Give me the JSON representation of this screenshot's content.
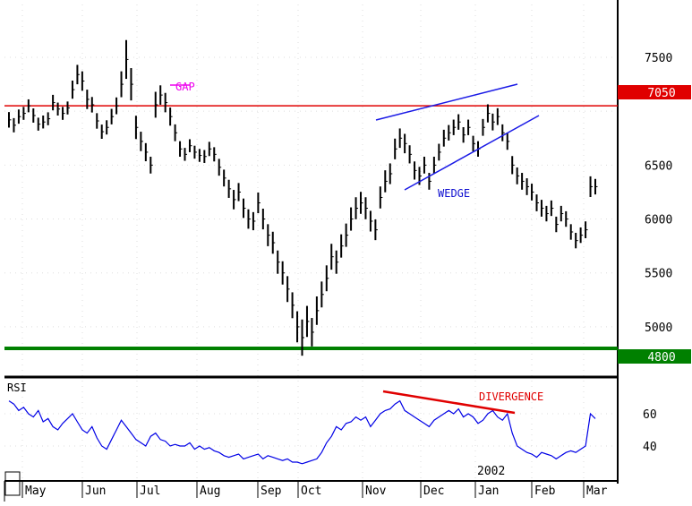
{
  "chart_data": [
    {
      "type": "line",
      "subtype": "ohlc-bar",
      "title": "",
      "xlabel": "",
      "ylabel": "",
      "ylim": [
        4750,
        7700
      ],
      "y_ticks": [
        5000,
        5500,
        6000,
        6500,
        7000,
        7500
      ],
      "y_tick_labels": [
        "5000",
        "5500",
        "6000",
        "6500",
        "7000",
        "7500"
      ],
      "grid": true,
      "x_month_labels": [
        "May",
        "Jun",
        "Jul",
        "Aug",
        "Sep",
        "Oct",
        "Nov",
        "Dec",
        "Jan",
        "Feb",
        "Mar"
      ],
      "year_label": "2002",
      "series": [
        {
          "close": [
            6920,
            6870,
            6950,
            6980,
            7050,
            6960,
            6880,
            6900,
            6930,
            7080,
            7020,
            6980,
            7030,
            7200,
            7340,
            7280,
            7110,
            7060,
            6910,
            6810,
            6850,
            6950,
            7050,
            7250,
            7480,
            7250,
            6850,
            6720,
            6620,
            6500,
            7060,
            7150,
            7080,
            6950,
            6800,
            6650,
            6600,
            6680,
            6620,
            6590,
            6580,
            6650,
            6600,
            6480,
            6380,
            6280,
            6180,
            6250,
            6100,
            6000,
            5980,
            6150,
            6000,
            5850,
            5780,
            5600,
            5500,
            5350,
            5200,
            5000,
            4900,
            5050,
            4950,
            5150,
            5300,
            5450,
            5650,
            5600,
            5750,
            5850,
            6000,
            6100,
            6150,
            6100,
            5980,
            5900,
            6200,
            6350,
            6420,
            6650,
            6750,
            6700,
            6600,
            6450,
            6400,
            6500,
            6350,
            6500,
            6620,
            6750,
            6800,
            6850,
            6900,
            6780,
            6850,
            6700,
            6650,
            6850,
            6980,
            6900,
            6950,
            6800,
            6720,
            6500,
            6400,
            6350,
            6300,
            6250,
            6150,
            6100,
            6050,
            6100,
            5950,
            6050,
            6000,
            5880,
            5800,
            5850,
            5900,
            6300,
            6300
          ],
          "range": [
            120,
            110,
            110,
            100,
            100,
            110,
            100,
            100,
            100,
            120,
            100,
            100,
            100,
            140,
            150,
            150,
            150,
            120,
            120,
            110,
            110,
            120,
            130,
            200,
            300,
            250,
            180,
            150,
            140,
            130,
            200,
            150,
            150,
            140,
            130,
            120,
            100,
            100,
            100,
            100,
            100,
            110,
            110,
            130,
            130,
            140,
            150,
            140,
            150,
            150,
            140,
            160,
            160,
            170,
            170,
            180,
            180,
            200,
            200,
            240,
            280,
            240,
            220,
            220,
            200,
            200,
            200,
            180,
            180,
            180,
            180,
            170,
            170,
            170,
            160,
            160,
            170,
            170,
            160,
            160,
            150,
            150,
            140,
            140,
            140,
            130,
            130,
            130,
            130,
            130,
            120,
            120,
            120,
            120,
            120,
            120,
            120,
            130,
            140,
            130,
            130,
            130,
            130,
            140,
            130,
            130,
            130,
            130,
            130,
            130,
            120,
            120,
            120,
            120,
            120,
            120,
            120,
            120,
            130,
            160,
            120
          ],
          "color": "#000000"
        }
      ],
      "horizontal_lines": [
        {
          "value": 7050,
          "label": "7050",
          "color": "#e00000",
          "label_bg": "#e00000"
        },
        {
          "value": 4800,
          "label": "4800",
          "color": "#008000",
          "label_bg": "#008000"
        }
      ],
      "annotations": [
        {
          "text": "GAP",
          "color": "#ee00ee"
        },
        {
          "text": "WEDGE",
          "color": "#1010d0"
        }
      ],
      "trendline_color": "#1a1ae6"
    },
    {
      "type": "line",
      "title": "RSI",
      "ylim": [
        25,
        80
      ],
      "y_ticks": [
        40,
        60
      ],
      "y_tick_labels": [
        "40",
        "60"
      ],
      "series": [
        {
          "values": [
            68,
            66,
            62,
            64,
            60,
            58,
            62,
            55,
            57,
            52,
            50,
            54,
            57,
            60,
            55,
            50,
            48,
            52,
            45,
            40,
            38,
            44,
            50,
            56,
            52,
            48,
            44,
            42,
            40,
            46,
            48,
            44,
            43,
            40,
            41,
            40,
            40,
            42,
            38,
            40,
            38,
            39,
            37,
            36,
            34,
            33,
            34,
            35,
            32,
            33,
            34,
            35,
            32,
            34,
            33,
            32,
            31,
            32,
            30,
            30,
            29,
            30,
            31,
            32,
            36,
            42,
            46,
            52,
            50,
            54,
            55,
            58,
            56,
            58,
            52,
            56,
            60,
            62,
            63,
            66,
            68,
            62,
            60,
            58,
            56,
            54,
            52,
            56,
            58,
            60,
            62,
            60,
            63,
            58,
            60,
            58,
            54,
            56,
            60,
            62,
            58,
            56,
            60,
            48,
            40,
            38,
            36,
            35,
            33,
            36,
            35,
            34,
            32,
            34,
            36,
            37,
            36,
            38,
            40,
            60,
            57
          ],
          "color": "#0000e6"
        }
      ],
      "annotations": [
        {
          "text": "DIVERGENCE",
          "color": "#e00000"
        }
      ]
    }
  ]
}
